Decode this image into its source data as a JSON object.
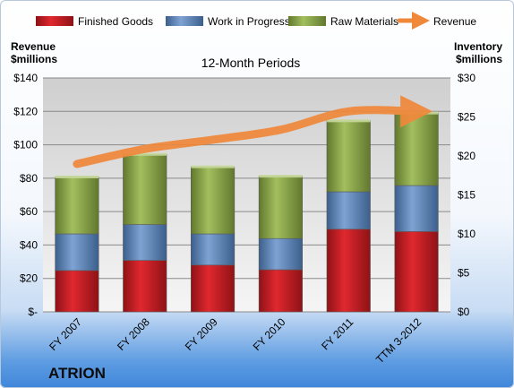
{
  "chart_data": {
    "type": "bar",
    "stacked": true,
    "subtitle": "12-Month Periods",
    "company": "ATRION",
    "categories": [
      "FY 2007",
      "FY 2008",
      "FY 2009",
      "FY 2010",
      "FY 2011",
      "TTM 3-2012"
    ],
    "series": [
      {
        "name": "Finished Goods",
        "axis": "right",
        "color": "#c0202a",
        "values": [
          5.3,
          6.6,
          6.0,
          5.4,
          10.6,
          10.3
        ]
      },
      {
        "name": "Work in Progress",
        "axis": "right",
        "color": "#4f81bd",
        "values": [
          4.7,
          4.6,
          4.0,
          4.0,
          4.8,
          5.9
        ]
      },
      {
        "name": "Raw Materials",
        "axis": "right",
        "color": "#8aa84a",
        "values": [
          7.3,
          9.0,
          8.6,
          8.0,
          9.1,
          9.3
        ]
      },
      {
        "name": "Revenue",
        "axis": "left",
        "type": "line",
        "color": "#f0883a",
        "values": [
          88.5,
          97.5,
          103,
          109,
          120,
          120
        ]
      }
    ],
    "left_axis": {
      "title_lines": [
        "Revenue",
        "$millions"
      ],
      "ylim": [
        0,
        140
      ],
      "ticks": [
        0,
        20,
        40,
        60,
        80,
        100,
        120,
        140
      ],
      "tick_labels": [
        "$-",
        "$20",
        "$40",
        "$60",
        "$80",
        "$100",
        "$120",
        "$140"
      ]
    },
    "right_axis": {
      "title_lines": [
        "Inventory",
        "$millions"
      ],
      "ylim": [
        0,
        30
      ],
      "ticks": [
        0,
        5,
        10,
        15,
        20,
        25,
        30
      ],
      "tick_labels": [
        "$0",
        "$5",
        "$10",
        "$15",
        "$20",
        "$25",
        "$30"
      ]
    },
    "grid": true,
    "legend_position": "top"
  }
}
